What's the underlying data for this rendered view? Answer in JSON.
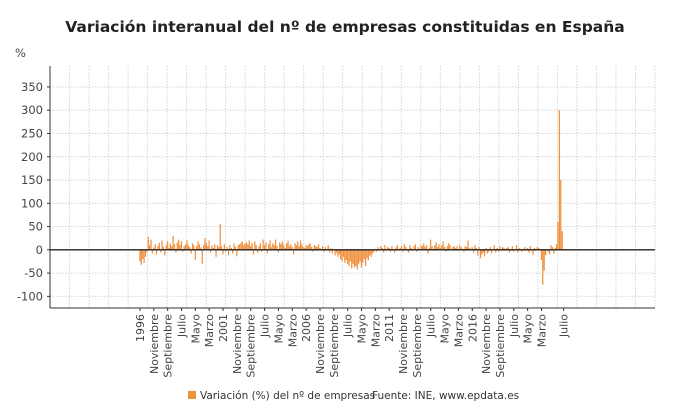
{
  "chart_data": {
    "type": "bar",
    "title": "Variación interanual del nº de empresas constituidas en España",
    "ylabel": "%",
    "xlabel": "",
    "ylim": [
      -125,
      395
    ],
    "xlim": [
      "1990-08",
      "2027-01"
    ],
    "yticks": [
      350,
      300,
      250,
      200,
      150,
      100,
      50,
      0,
      -50,
      -100
    ],
    "grid": true,
    "legend_position": "bottom",
    "bar_color": "#f0913f",
    "source": "Fuente: INE, www.epdata.es",
    "xticks": [
      {
        "label": "1996",
        "date": "1996-01"
      },
      {
        "label": "Noviembre",
        "date": "1996-11"
      },
      {
        "label": "Septiembre",
        "date": "1997-09"
      },
      {
        "label": "Julio",
        "date": "1998-07"
      },
      {
        "label": "Mayo",
        "date": "1999-05"
      },
      {
        "label": "Marzo",
        "date": "2000-03"
      },
      {
        "label": "2001",
        "date": "2001-01"
      },
      {
        "label": "Noviembre",
        "date": "2001-11"
      },
      {
        "label": "Septiembre",
        "date": "2002-09"
      },
      {
        "label": "Julio",
        "date": "2003-07"
      },
      {
        "label": "Mayo",
        "date": "2004-05"
      },
      {
        "label": "Marzo",
        "date": "2005-03"
      },
      {
        "label": "2006",
        "date": "2006-01"
      },
      {
        "label": "Noviembre",
        "date": "2006-11"
      },
      {
        "label": "Septiembre",
        "date": "2007-09"
      },
      {
        "label": "Julio",
        "date": "2008-07"
      },
      {
        "label": "Mayo",
        "date": "2009-05"
      },
      {
        "label": "Marzo",
        "date": "2010-03"
      },
      {
        "label": "2011",
        "date": "2011-01"
      },
      {
        "label": "Noviembre",
        "date": "2011-11"
      },
      {
        "label": "Septiembre",
        "date": "2012-09"
      },
      {
        "label": "Julio",
        "date": "2013-07"
      },
      {
        "label": "Mayo",
        "date": "2014-05"
      },
      {
        "label": "Marzo",
        "date": "2015-03"
      },
      {
        "label": "2016",
        "date": "2016-01"
      },
      {
        "label": "Noviembre",
        "date": "2016-11"
      },
      {
        "label": "Septiembre",
        "date": "2017-09"
      },
      {
        "label": "Julio",
        "date": "2018-07"
      },
      {
        "label": "Mayo",
        "date": "2019-05"
      },
      {
        "label": "Marzo",
        "date": "2020-03"
      },
      {
        "label": "Julio",
        "date": "2021-07"
      }
    ],
    "series": [
      {
        "name": "Variación (%) del nº de empresas",
        "monthly_by_year": {
          "1996": [
            -25,
            -32,
            -20,
            -28,
            -15,
            -5,
            28,
            10,
            22,
            -8,
            5,
            12
          ],
          "1997": [
            -10,
            8,
            15,
            -5,
            20,
            6,
            -12,
            10,
            18,
            4,
            14,
            8
          ],
          "1998": [
            30,
            12,
            -6,
            16,
            22,
            10,
            18,
            -4,
            8,
            12,
            20,
            10
          ],
          "1999": [
            6,
            -8,
            14,
            10,
            -22,
            8,
            18,
            12,
            5,
            -30,
            10,
            25
          ],
          "2000": [
            15,
            8,
            20,
            -6,
            10,
            4,
            12,
            -15,
            10,
            6,
            55,
            8
          ],
          "2001": [
            -10,
            12,
            -4,
            6,
            -12,
            10,
            4,
            -8,
            14,
            6,
            -14,
            10
          ],
          "2002": [
            12,
            15,
            18,
            10,
            14,
            16,
            12,
            20,
            8,
            15,
            -10,
            18
          ],
          "2003": [
            10,
            -6,
            8,
            14,
            -4,
            22,
            10,
            16,
            -8,
            12,
            20,
            6
          ],
          "2004": [
            14,
            10,
            22,
            8,
            -6,
            16,
            12,
            18,
            10,
            4,
            14,
            20
          ],
          "2005": [
            8,
            12,
            6,
            -10,
            14,
            10,
            18,
            8,
            20,
            12,
            6,
            4
          ],
          "2006": [
            10,
            8,
            12,
            14,
            6,
            -4,
            10,
            8,
            6,
            12,
            4,
            2
          ],
          "2007": [
            8,
            -4,
            6,
            2,
            10,
            -6,
            4,
            -8,
            2,
            -12,
            -6,
            -15
          ],
          "2008": [
            -10,
            -20,
            -25,
            -15,
            -28,
            -22,
            -30,
            -35,
            -25,
            -40,
            -30,
            -38
          ],
          "2009": [
            -35,
            -42,
            -30,
            -25,
            -38,
            -28,
            -20,
            -35,
            -18,
            -22,
            -12,
            -15
          ],
          "2010": [
            -8,
            -5,
            2,
            -4,
            6,
            -2,
            8,
            4,
            -6,
            10,
            2,
            6
          ],
          "2011": [
            4,
            -4,
            8,
            2,
            -6,
            6,
            10,
            -2,
            4,
            8,
            -4,
            12
          ],
          "2012": [
            6,
            2,
            -6,
            10,
            4,
            -2,
            8,
            12,
            -4,
            6,
            2,
            10
          ],
          "2013": [
            8,
            14,
            6,
            10,
            -8,
            4,
            22,
            8,
            2,
            10,
            16,
            6
          ],
          "2014": [
            12,
            4,
            10,
            18,
            6,
            -4,
            8,
            14,
            10,
            2,
            6,
            8
          ],
          "2015": [
            4,
            8,
            -2,
            10,
            6,
            2,
            -4,
            8,
            6,
            20,
            4,
            2
          ],
          "2016": [
            6,
            -6,
            10,
            4,
            -12,
            6,
            -18,
            -10,
            -6,
            -14,
            4,
            -8
          ],
          "2017": [
            -4,
            6,
            -8,
            2,
            10,
            -6,
            4,
            -4,
            8,
            -2,
            6,
            4
          ],
          "2018": [
            -2,
            4,
            6,
            -6,
            2,
            8,
            -4,
            2,
            10,
            -6,
            4,
            2
          ],
          "2019": [
            -4,
            2,
            6,
            -2,
            4,
            -6,
            8,
            2,
            -10,
            4,
            -2,
            6
          ],
          "2020": [
            4,
            2,
            -22,
            -75,
            -45,
            -12,
            2,
            -4,
            -10,
            10,
            6,
            -8
          ],
          "2021": [
            4,
            12,
            60,
            300,
            150,
            40
          ]
        }
      }
    ]
  }
}
